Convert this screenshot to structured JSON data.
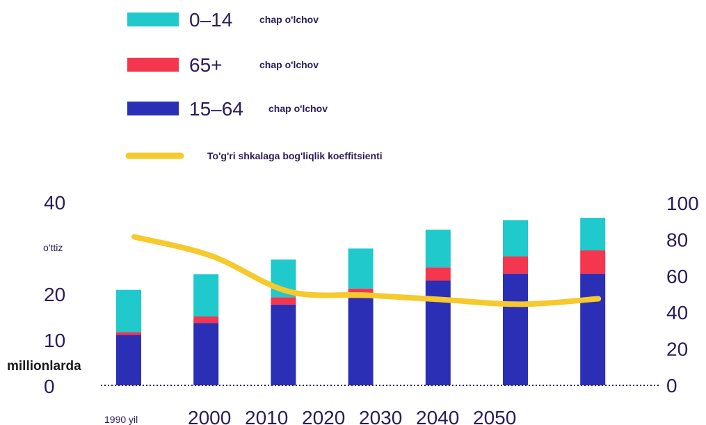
{
  "chart_data": {
    "type": "bar",
    "stacked": true,
    "categories": [
      "1990 yil",
      "2000",
      "2010",
      "2020",
      "2030",
      "2040",
      "2050"
    ],
    "series": [
      {
        "name": "15–64",
        "axis": "left",
        "color": "#2b2fb5",
        "values": [
          11,
          13.6,
          17.6,
          19,
          22.8,
          24.3,
          24.3
        ]
      },
      {
        "name": "65+",
        "axis": "left",
        "color": "#f5364f",
        "values": [
          0.6,
          1.4,
          1.6,
          2.1,
          2.9,
          3.8,
          5.1
        ]
      },
      {
        "name": "0–14",
        "axis": "left",
        "color": "#1fc9cc",
        "values": [
          9.2,
          9.2,
          8.2,
          8.7,
          8.2,
          7.9,
          7.1
        ]
      },
      {
        "name": "To'g'ri shkalaga bog'liqlik koeffitsienti",
        "type": "line",
        "axis": "right",
        "color": "#f6c92c",
        "values": [
          81.5,
          71,
          51.5,
          49.5,
          47,
          44.5,
          47.5
        ]
      }
    ],
    "legend": [
      {
        "key": "0–14",
        "note": "chap o'lchov",
        "color": "#1fc9cc",
        "kind": "box"
      },
      {
        "key": "65+",
        "note": "chap o'lchov",
        "color": "#f5364f",
        "kind": "box"
      },
      {
        "key": "15–64",
        "note": "chap o'lchov",
        "color": "#2b2fb5",
        "kind": "box"
      },
      {
        "key": "",
        "note": "To'g'ri shkalaga bog'liqlik koeffitsienti",
        "color": "#f6c92c",
        "kind": "line"
      }
    ],
    "legend_position": "top-left",
    "y_left": {
      "ylim": [
        0,
        40
      ],
      "ticks": [
        "0",
        "10",
        "20",
        "o'ttiz",
        "40"
      ],
      "label": "millionlarda"
    },
    "y_right": {
      "ylim": [
        0,
        100
      ],
      "ticks": [
        "0",
        "20",
        "40",
        "60",
        "80",
        "100"
      ]
    },
    "grid": false,
    "baseline": "dotted"
  }
}
